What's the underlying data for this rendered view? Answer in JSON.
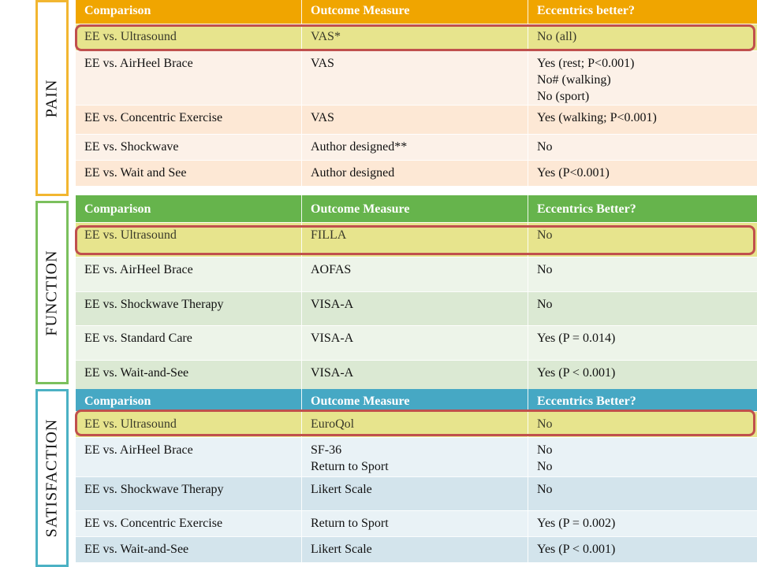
{
  "sections": [
    {
      "label": "PAIN",
      "header": [
        "Comparison",
        "Outcome Measure",
        "Eccentrics better?"
      ],
      "rows": [
        {
          "comparison": "EE vs. Ultrasound",
          "measure": [
            "VAS*"
          ],
          "result": [
            "No   (all)"
          ],
          "highlight": true
        },
        {
          "comparison": "EE vs. AirHeel Brace",
          "measure": [
            "VAS"
          ],
          "result": [
            "Yes   (rest; P<0.001)",
            "No#  (walking)",
            "No    (sport)"
          ],
          "highlight": false
        },
        {
          "comparison": "EE vs. Concentric Exercise",
          "measure": [
            "VAS"
          ],
          "result": [
            "Yes   (walking; P<0.001)"
          ],
          "highlight": false
        },
        {
          "comparison": "EE vs. Shockwave",
          "measure": [
            "Author designed**"
          ],
          "result": [
            "No"
          ],
          "highlight": false
        },
        {
          "comparison": "EE vs. Wait and See",
          "measure": [
            "Author designed"
          ],
          "result": [
            "Yes    (P<0.001)"
          ],
          "highlight": false
        }
      ]
    },
    {
      "label": "FUNCTION",
      "header": [
        "Comparison",
        "Outcome Measure",
        "Eccentrics Better?"
      ],
      "rows": [
        {
          "comparison": "EE vs. Ultrasound",
          "measure": [
            "FILLA"
          ],
          "result": [
            "No"
          ],
          "highlight": true
        },
        {
          "comparison": "EE vs. AirHeel Brace",
          "measure": [
            "AOFAS"
          ],
          "result": [
            "No"
          ],
          "highlight": false
        },
        {
          "comparison": "EE vs. Shockwave Therapy",
          "measure": [
            "VISA-A"
          ],
          "result": [
            "No"
          ],
          "highlight": false
        },
        {
          "comparison": "EE vs. Standard Care",
          "measure": [
            "VISA-A"
          ],
          "result": [
            "Yes (P = 0.014)"
          ],
          "highlight": false
        },
        {
          "comparison": "EE vs. Wait-and-See",
          "measure": [
            "VISA-A"
          ],
          "result": [
            "Yes (P < 0.001)"
          ],
          "highlight": false
        }
      ]
    },
    {
      "label": "SATISFACTION",
      "header": [
        "Comparison",
        "Outcome Measure",
        "Eccentrics Better?"
      ],
      "rows": [
        {
          "comparison": "EE vs. Ultrasound",
          "measure": [
            "EuroQol"
          ],
          "result": [
            "No"
          ],
          "highlight": true
        },
        {
          "comparison": "EE vs. AirHeel Brace",
          "measure": [
            "SF-36",
            "Return to Sport"
          ],
          "result": [
            "No",
            "No"
          ],
          "highlight": false
        },
        {
          "comparison": "EE vs. Shockwave Therapy",
          "measure": [
            "Likert Scale"
          ],
          "result": [
            "No"
          ],
          "highlight": false
        },
        {
          "comparison": "EE vs. Concentric Exercise",
          "measure": [
            "Return to Sport"
          ],
          "result": [
            "Yes (P = 0.002)"
          ],
          "highlight": false
        },
        {
          "comparison": "EE vs. Wait-and-See",
          "measure": [
            "Likert Scale"
          ],
          "result": [
            "Yes (P < 0.001)"
          ],
          "highlight": false
        }
      ]
    }
  ],
  "colors": {
    "pain_header": "#f0a500",
    "function_header": "#66b44c",
    "satisfaction_header": "#46a8c4",
    "highlight_row": "#e7e48d",
    "highlight_outline": "#c0504d"
  }
}
